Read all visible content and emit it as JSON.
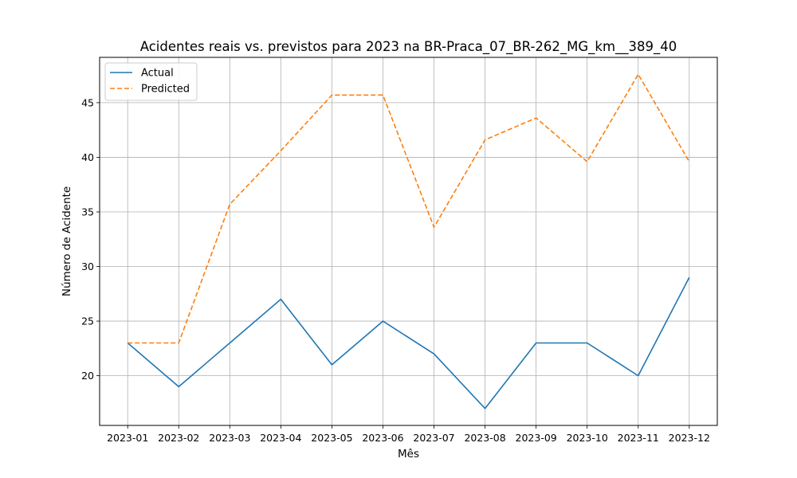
{
  "chart_data": {
    "type": "line",
    "title": "Acidentes reais vs. previstos para 2023 na BR-Praca_07_BR-262_MG_km__389_40",
    "xlabel": "Mês",
    "ylabel": "Número de Acidente",
    "categories": [
      "2023-01",
      "2023-02",
      "2023-03",
      "2023-04",
      "2023-05",
      "2023-06",
      "2023-07",
      "2023-08",
      "2023-09",
      "2023-10",
      "2023-11",
      "2023-12"
    ],
    "yticks": [
      20,
      25,
      30,
      35,
      40,
      45
    ],
    "ylim": [
      15.45,
      49.15
    ],
    "grid": true,
    "legend_position": "top-left",
    "series": [
      {
        "name": "Actual",
        "color": "#1f77b4",
        "style": "solid",
        "values": [
          23,
          19,
          23,
          27,
          21,
          25,
          22,
          17,
          23,
          23,
          20,
          29
        ]
      },
      {
        "name": "Predicted",
        "color": "#ff7f0e",
        "style": "dashed",
        "values": [
          23,
          23,
          35.7,
          40.6,
          45.7,
          45.7,
          33.6,
          41.6,
          43.6,
          39.6,
          47.6,
          39.6
        ]
      }
    ]
  }
}
